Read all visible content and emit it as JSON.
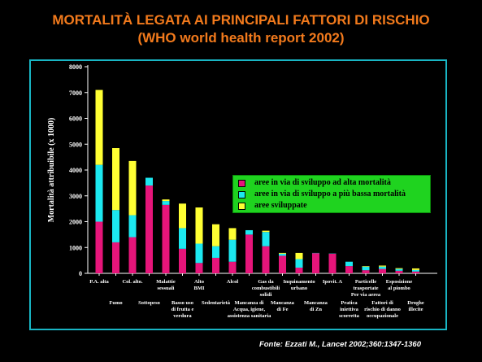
{
  "header": {
    "title_line1": "MORTALITÀ LEGATA AI PRINCIPALI FATTORI DI RISCHIO",
    "title_line2": "(WHO world health report 2002)"
  },
  "source": "Fonte: Ezzati M., Lancet 2002;360:1347-1360",
  "colors": {
    "series1": "#e6157a",
    "series2": "#1ce8f0",
    "series3": "#ffff33",
    "frame": "#19b5c4",
    "legend_bg": "#1fd31f"
  },
  "chart_data": {
    "type": "bar",
    "stacked": true,
    "ylabel": "Mortalità attribuibile (x 1000)",
    "ylim": [
      0,
      8000
    ],
    "yticks": [
      0,
      1000,
      2000,
      3000,
      4000,
      5000,
      6000,
      7000,
      8000
    ],
    "legend_position": "upper-right",
    "categories": [
      "P.A. alta",
      "Fumo",
      "Col. alto.",
      "Sottopeso",
      "Malattie sessuali",
      "Basso uso di frutta e verdura",
      "Alto BMI",
      "Sedentarietà",
      "Alcol",
      "Mancanza di Acqua, igiene, assistenza sanitaria",
      "Gas da combustibili solidi",
      "Mancanza di Fe",
      "Inquinamento urbano",
      "Mancanza di Zn",
      "Ipovit. A",
      "Pratica iniettiva scorretta",
      "Particelle trasportate Per via aerea",
      "Fattori di rischio di danno occupazionale",
      "Esposizione al piombo",
      "Droghe illecite"
    ],
    "series": [
      {
        "name": "aree in via di sviluppo ad alta mortalità",
        "values": [
          2000,
          1200,
          1400,
          3400,
          2650,
          950,
          400,
          600,
          450,
          1500,
          1050,
          680,
          220,
          780,
          760,
          280,
          120,
          170,
          100,
          70
        ]
      },
      {
        "name": "aree in via di sviluppo a più bassa mortalità",
        "values": [
          2200,
          1250,
          850,
          300,
          150,
          800,
          750,
          450,
          850,
          170,
          550,
          80,
          330,
          10,
          10,
          170,
          140,
          90,
          70,
          60
        ]
      },
      {
        "name": "aree sviluppate",
        "values": [
          2900,
          2400,
          2100,
          0,
          60,
          950,
          1400,
          850,
          450,
          0,
          50,
          30,
          240,
          0,
          0,
          0,
          20,
          40,
          30,
          60
        ]
      }
    ]
  }
}
